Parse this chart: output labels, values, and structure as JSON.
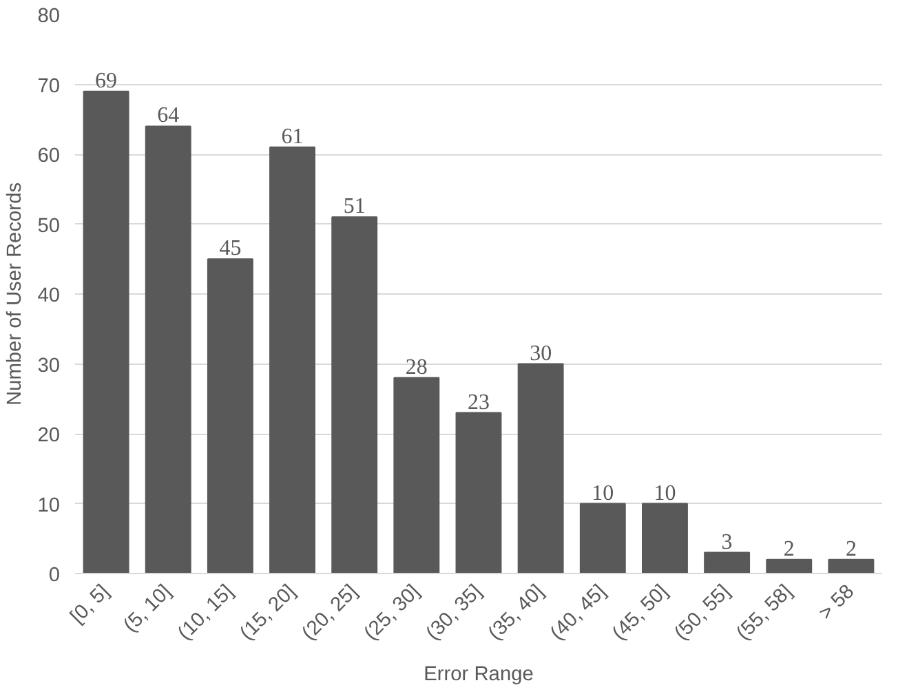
{
  "chart_data": {
    "type": "bar",
    "xlabel": "Error Range",
    "ylabel": "Number of User Records",
    "categories": [
      "[0, 5]",
      "(5, 10]",
      "(10, 15]",
      "(15, 20]",
      "(20, 25]",
      "(25, 30]",
      "(30, 35]",
      "(35, 40]",
      "(40, 45]",
      "(45, 50]",
      "(50, 55]",
      "(55, 58]",
      "> 58"
    ],
    "values": [
      69,
      64,
      45,
      61,
      51,
      28,
      23,
      30,
      10,
      10,
      3,
      2,
      2
    ],
    "color": "#595959",
    "ylim": [
      0,
      80
    ],
    "yticks": [
      0,
      10,
      20,
      30,
      40,
      50,
      60,
      70,
      80
    ],
    "grid": "y",
    "data_labels": true
  }
}
